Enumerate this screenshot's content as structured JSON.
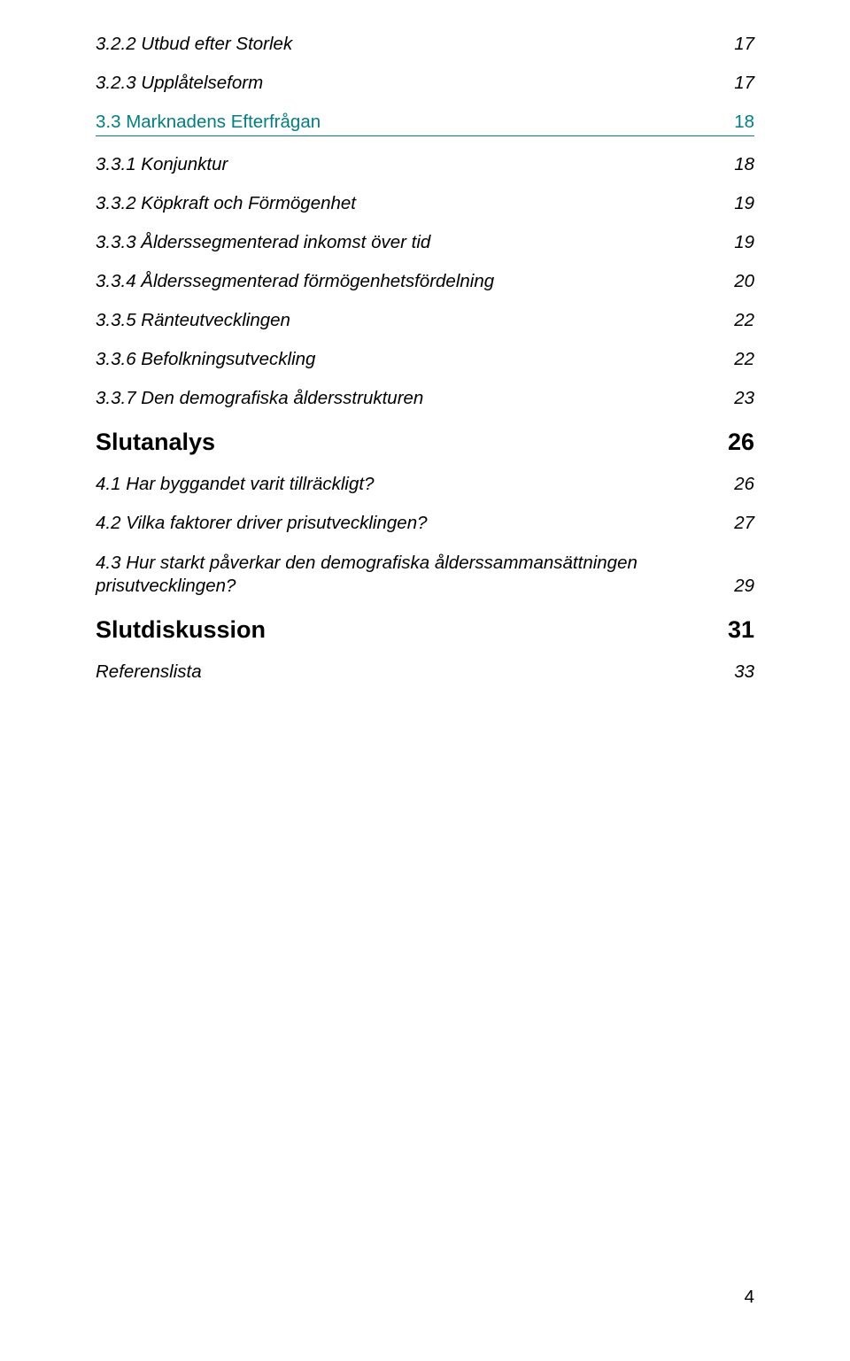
{
  "toc": {
    "e1": {
      "title": "3.2.2 Utbud efter Storlek",
      "page": "17"
    },
    "e2": {
      "title": "3.2.3 Upplåtelseform",
      "page": "17"
    },
    "e3": {
      "title": "3.3 Marknadens Efterfrågan",
      "page": "18"
    },
    "e4": {
      "title": "3.3.1 Konjunktur",
      "page": "18"
    },
    "e5": {
      "title": "3.3.2 Köpkraft och Förmögenhet",
      "page": "19"
    },
    "e6": {
      "title": "3.3.3 Ålderssegmenterad inkomst över tid",
      "page": "19"
    },
    "e7": {
      "title": "3.3.4 Ålderssegmenterad förmögenhetsfördelning",
      "page": "20"
    },
    "e8": {
      "title": "3.3.5 Ränteutvecklingen",
      "page": "22"
    },
    "e9": {
      "title": "3.3.6 Befolkningsutveckling",
      "page": "22"
    },
    "e10": {
      "title": "3.3.7 Den demografiska åldersstrukturen",
      "page": "23"
    },
    "e11": {
      "title": "Slutanalys",
      "page": "26"
    },
    "e12": {
      "title": "4.1 Har byggandet varit tillräckligt?",
      "page": "26"
    },
    "e13": {
      "title": "4.2 Vilka faktorer driver prisutvecklingen?",
      "page": "27"
    },
    "e14": {
      "title": "4.3 Hur starkt påverkar den demografiska ålderssammansättningen prisutvecklingen?",
      "page": "29"
    },
    "e15": {
      "title": "Slutdiskussion",
      "page": "31"
    },
    "e16": {
      "title": "Referenslista",
      "page": "33"
    }
  },
  "footer": {
    "page_number": "4"
  },
  "colors": {
    "accent": "#008080",
    "text": "#000000",
    "background": "#ffffff"
  }
}
